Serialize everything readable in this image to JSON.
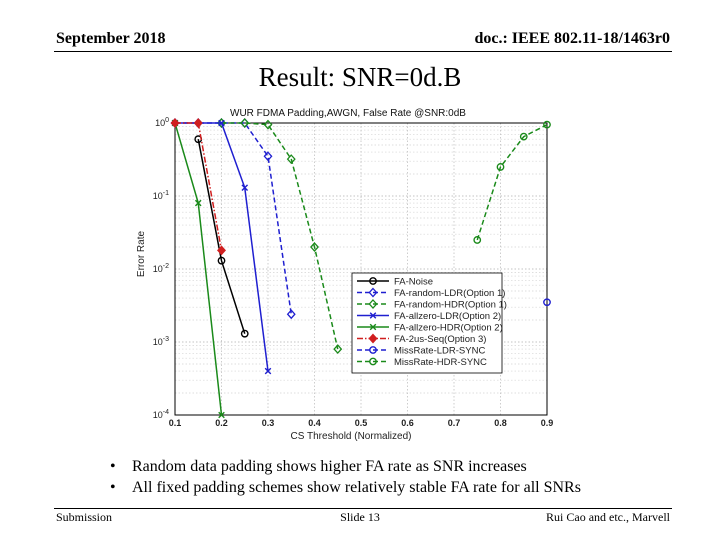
{
  "header": {
    "left": "September 2018",
    "right": "doc.: IEEE 802.11-18/1463r0"
  },
  "slide_title": "Result: SNR=0d.B",
  "bullets": [
    "Random data padding shows higher FA rate as SNR increases",
    "All fixed padding schemes show relatively stable FA rate for all SNRs"
  ],
  "footer": {
    "left": "Submission",
    "center": "Slide 13",
    "right": "Rui Cao and etc., Marvell"
  },
  "chart_data": {
    "type": "line",
    "title": "WUR FDMA Padding,AWGN, False Rate @SNR:0dB",
    "xlabel": "CS Threshold (Normalized)",
    "ylabel": "Error Rate",
    "xlim": [
      0.1,
      0.9
    ],
    "ylim": [
      0.0001,
      1
    ],
    "yscale": "log",
    "grid": true,
    "legend_position": "center-right",
    "x_ticks": [
      "0.1",
      "0.2",
      "0.3",
      "0.4",
      "0.5",
      "0.6",
      "0.7",
      "0.8",
      "0.9"
    ],
    "y_ticks": [
      {
        "base": "10",
        "exp": "0",
        "value": 1
      },
      {
        "base": "10",
        "exp": "-1",
        "value": 0.1
      },
      {
        "base": "10",
        "exp": "-2",
        "value": 0.01
      },
      {
        "base": "10",
        "exp": "-3",
        "value": 0.001
      },
      {
        "base": "10",
        "exp": "-4",
        "value": 0.0001
      }
    ],
    "series": [
      {
        "name": "FA-Noise",
        "color": "#000000",
        "dash": "solid",
        "marker": "circle",
        "x": [
          0.15,
          0.2,
          0.25
        ],
        "y": [
          0.6,
          0.013,
          0.0013
        ]
      },
      {
        "name": "FA-random-LDR(Option 1)",
        "color": "#1f1fd0",
        "dash": "dashed",
        "marker": "diamond",
        "x": [
          0.1,
          0.15,
          0.2,
          0.25,
          0.3,
          0.35
        ],
        "y": [
          1,
          1,
          1,
          1,
          0.35,
          0.0024
        ]
      },
      {
        "name": "FA-random-HDR(Option 1)",
        "color": "#1a8a1a",
        "dash": "dashed",
        "marker": "diamond",
        "x": [
          0.2,
          0.25,
          0.3,
          0.35,
          0.4,
          0.45
        ],
        "y": [
          1,
          1,
          0.95,
          0.32,
          0.02,
          0.0008
        ]
      },
      {
        "name": "FA-allzero-LDR(Option 2)",
        "color": "#1f1fd0",
        "dash": "solid",
        "marker": "x",
        "x": [
          0.1,
          0.2,
          0.25,
          0.3
        ],
        "y": [
          1,
          1,
          0.13,
          0.0004
        ]
      },
      {
        "name": "FA-allzero-HDR(Option 2)",
        "color": "#1a8a1a",
        "dash": "solid",
        "marker": "x",
        "x": [
          0.1,
          0.15,
          0.2
        ],
        "y": [
          1,
          0.08,
          0.0001
        ]
      },
      {
        "name": "FA-2us-Seq(Option 3)",
        "color": "#d01f1f",
        "dash": "dashdot",
        "marker": "diamond",
        "x": [
          0.1,
          0.15,
          0.2
        ],
        "y": [
          1,
          1,
          0.018
        ]
      },
      {
        "name": "MissRate-LDR-SYNC",
        "color": "#1f1fd0",
        "dash": "dashed",
        "marker": "circle",
        "x": [
          0.9
        ],
        "y": [
          0.0035
        ]
      },
      {
        "name": "MissRate-HDR-SYNC",
        "color": "#1a8a1a",
        "dash": "dashed",
        "marker": "circle",
        "x": [
          0.75,
          0.8,
          0.85,
          0.9
        ],
        "y": [
          0.025,
          0.25,
          0.65,
          0.95
        ]
      }
    ]
  }
}
